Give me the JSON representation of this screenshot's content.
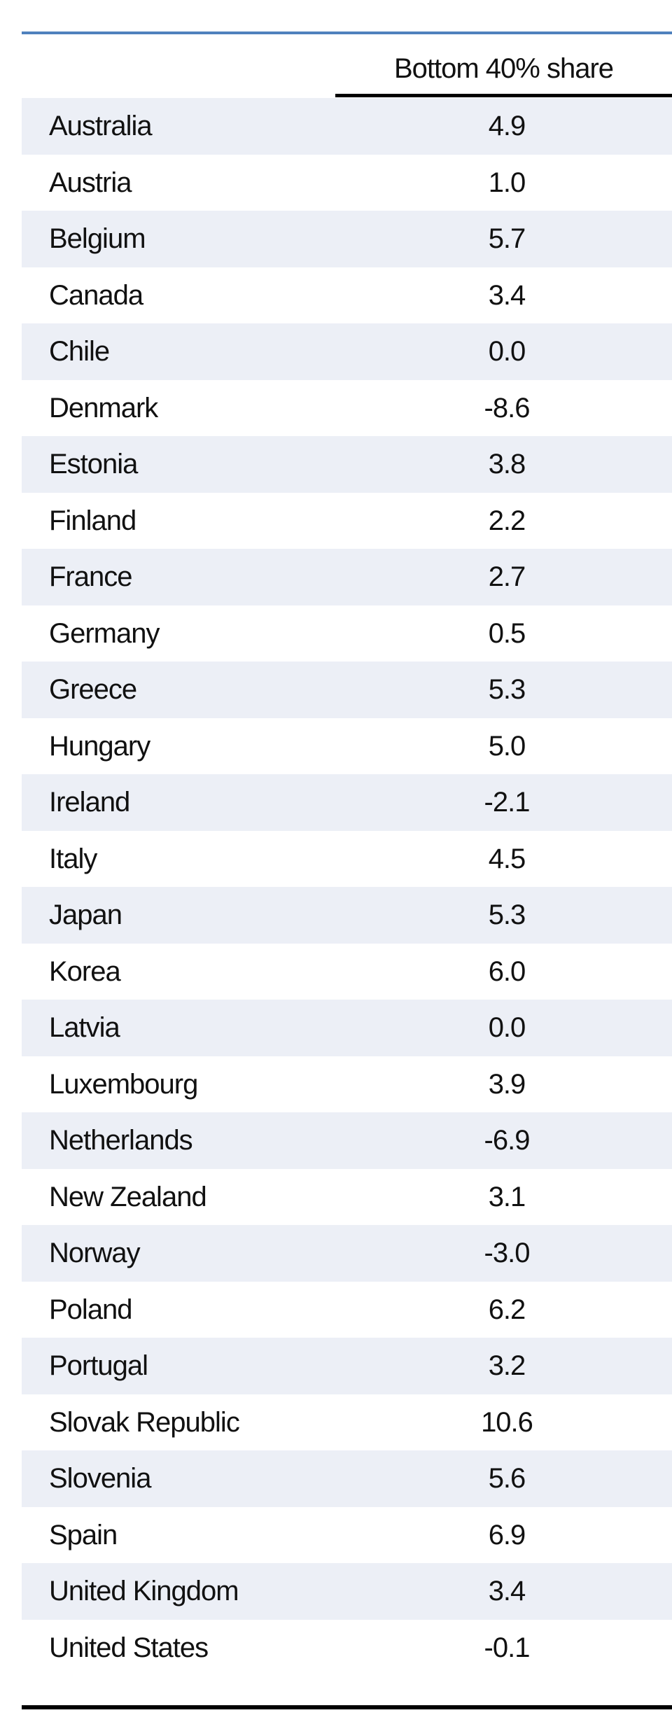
{
  "table": {
    "header": {
      "column": "Bottom 40% share"
    },
    "rows": [
      [
        "Australia",
        "4.9"
      ],
      [
        "Austria",
        "1.0"
      ],
      [
        "Belgium",
        "5.7"
      ],
      [
        "Canada",
        "3.4"
      ],
      [
        "Chile",
        "0.0"
      ],
      [
        "Denmark",
        "-8.6"
      ],
      [
        "Estonia",
        "3.8"
      ],
      [
        "Finland",
        "2.2"
      ],
      [
        "France",
        "2.7"
      ],
      [
        "Germany",
        "0.5"
      ],
      [
        "Greece",
        "5.3"
      ],
      [
        "Hungary",
        "5.0"
      ],
      [
        "Ireland",
        "-2.1"
      ],
      [
        "Italy",
        "4.5"
      ],
      [
        "Japan",
        "5.3"
      ],
      [
        "Korea",
        "6.0"
      ],
      [
        "Latvia",
        "0.0"
      ],
      [
        "Luxembourg",
        "3.9"
      ],
      [
        "Netherlands",
        "-6.9"
      ],
      [
        "New Zealand",
        "3.1"
      ],
      [
        "Norway",
        "-3.0"
      ],
      [
        "Poland",
        "6.2"
      ],
      [
        "Portugal",
        "3.2"
      ],
      [
        "Slovak Republic",
        "10.6"
      ],
      [
        "Slovenia",
        "5.6"
      ],
      [
        "Spain",
        "6.9"
      ],
      [
        "United Kingdom",
        "3.4"
      ],
      [
        "United States",
        "-0.1"
      ]
    ]
  }
}
